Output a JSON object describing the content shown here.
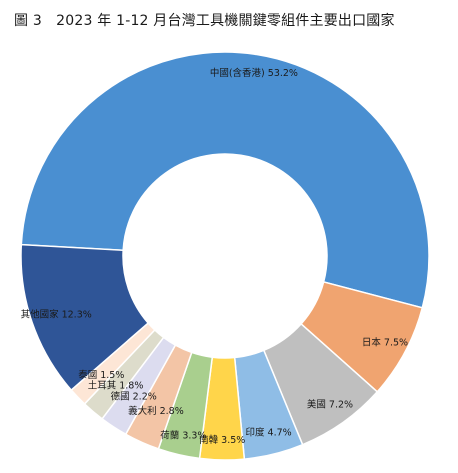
{
  "title": "圖 3　2023 年 1-12 月台灣工具機關鍵零組件主要出口國家",
  "chart_data": {
    "type": "pie",
    "title": "圖 3　2023 年 1-12 月台灣工具機關鍵零組件主要出口國家",
    "donut": true,
    "slices": [
      {
        "label": "中國(含香港)",
        "value": 53.2,
        "text": "中國(含香港) 53.2%",
        "color": "#4a8fd1"
      },
      {
        "label": "日本",
        "value": 7.5,
        "text": "日本 7.5%",
        "color": "#f0a470"
      },
      {
        "label": "美國",
        "value": 7.2,
        "text": "美國 7.2%",
        "color": "#bfbfbf"
      },
      {
        "label": "印度",
        "value": 4.7,
        "text": "印度 4.7%",
        "color": "#8fbde6"
      },
      {
        "label": "南韓",
        "value": 3.5,
        "text": "南韓 3.5%",
        "color": "#ffd54a"
      },
      {
        "label": "荷蘭",
        "value": 3.3,
        "text": "荷蘭 3.3%",
        "color": "#a9cf8e"
      },
      {
        "label": "義大利",
        "value": 2.8,
        "text": "義大利 2.8%",
        "color": "#f3c5a6"
      },
      {
        "label": "德國",
        "value": 2.2,
        "text": "德國 2.2%",
        "color": "#dcdcef"
      },
      {
        "label": "土耳其",
        "value": 1.8,
        "text": "土耳其 1.8%",
        "color": "#dddccb"
      },
      {
        "label": "泰國",
        "value": 1.5,
        "text": "泰國 1.5%",
        "color": "#fde6d6"
      },
      {
        "label": "其他國家",
        "value": 12.3,
        "text": "其他國家 12.3%",
        "color": "#2f5597"
      }
    ]
  }
}
